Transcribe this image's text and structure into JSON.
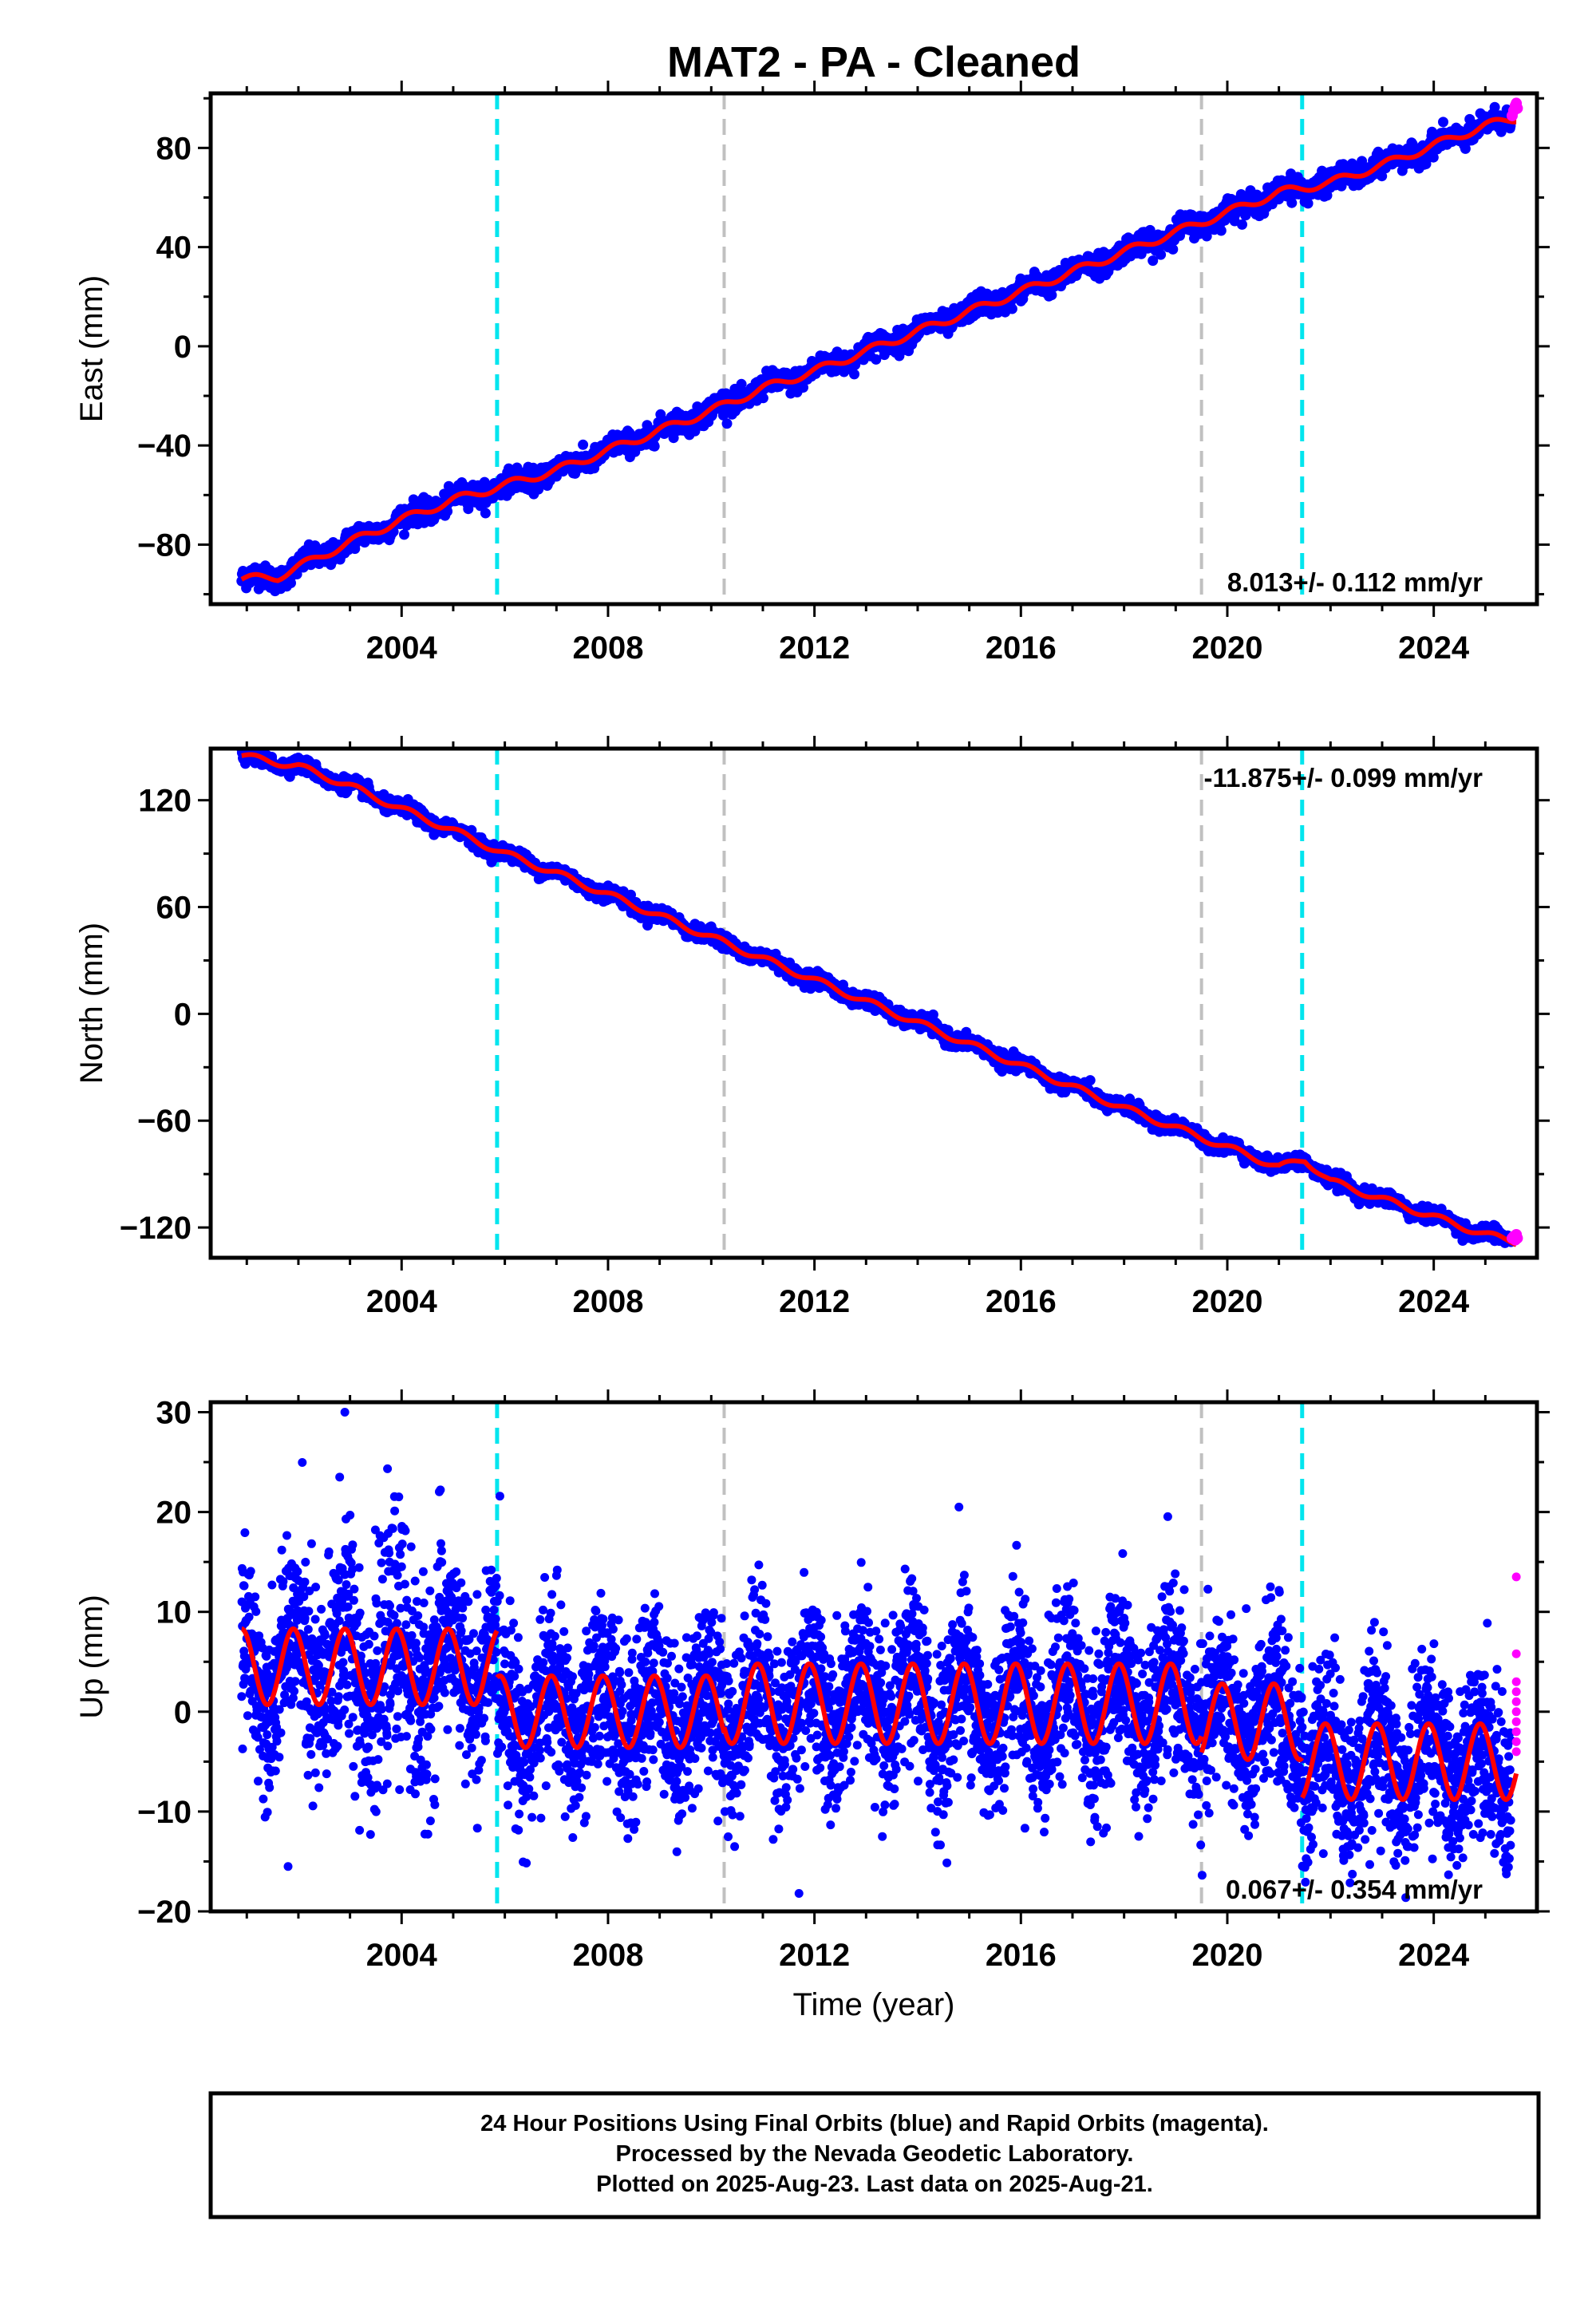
{
  "page": {
    "title": "MAT2  - PA - Cleaned",
    "footer_lines": [
      "24 Hour Positions Using Final Orbits (blue) and Rapid Orbits (magenta).",
      "Processed by the Nevada Geodetic Laboratory.",
      "Plotted on 2025-Aug-23. Last data on 2025-Aug-21."
    ]
  },
  "colors": {
    "final_orbits": "#0000ff",
    "rapid_orbits": "#ff00ff",
    "model_fit": "#ff0000",
    "equipment_change": "#00e5ee",
    "earthquake": "#c0c0c0"
  },
  "chart_data": [
    {
      "type": "scatter",
      "id": "east",
      "title": "MAT2  - PA - Cleaned",
      "xlabel": "",
      "ylabel": "East (mm)",
      "xlim": [
        2000.3,
        2026.0
      ],
      "ylim": [
        -104,
        102
      ],
      "xticks": [
        2004,
        2008,
        2012,
        2016,
        2020,
        2024
      ],
      "yticks": [
        -80,
        -40,
        0,
        40,
        80
      ],
      "rate_text": "8.013+/- 0.112 mm/yr",
      "rate_position": "bottom-right",
      "vertical_lines": [
        {
          "x": 2005.85,
          "kind": "equipment_change"
        },
        {
          "x": 2010.25,
          "kind": "earthquake"
        },
        {
          "x": 2019.5,
          "kind": "earthquake"
        },
        {
          "x": 2021.45,
          "kind": "equipment_change"
        }
      ],
      "trend_anchors": [
        [
          2000.9,
          -94
        ],
        [
          2001.6,
          -93
        ],
        [
          2002.2,
          -87
        ],
        [
          2003.0,
          -79
        ],
        [
          2004.0,
          -70
        ],
        [
          2005.0,
          -62
        ],
        [
          2006.0,
          -56
        ],
        [
          2007.0,
          -50
        ],
        [
          2008.0,
          -42
        ],
        [
          2009.0,
          -34
        ],
        [
          2010.0,
          -26
        ],
        [
          2011.0,
          -17
        ],
        [
          2012.0,
          -10
        ],
        [
          2013.0,
          -2
        ],
        [
          2014.0,
          6
        ],
        [
          2015.0,
          14
        ],
        [
          2016.0,
          22
        ],
        [
          2017.0,
          30
        ],
        [
          2018.0,
          38
        ],
        [
          2019.0,
          46
        ],
        [
          2020.0,
          54
        ],
        [
          2021.0,
          62
        ],
        [
          2022.0,
          66
        ],
        [
          2023.0,
          73
        ],
        [
          2024.0,
          81
        ],
        [
          2025.0,
          89
        ],
        [
          2025.6,
          92
        ]
      ],
      "seasonal_amplitude": 1.6,
      "scatter_sd": 2.2,
      "rapid_points": [
        [
          2025.52,
          93
        ],
        [
          2025.55,
          95
        ],
        [
          2025.58,
          97
        ],
        [
          2025.6,
          98
        ],
        [
          2025.62,
          96
        ]
      ]
    },
    {
      "type": "scatter",
      "id": "north",
      "title": "",
      "xlabel": "",
      "ylabel": "North (mm)",
      "xlim": [
        2000.3,
        2026.0
      ],
      "ylim": [
        -137,
        149
      ],
      "xticks": [
        2004,
        2008,
        2012,
        2016,
        2020,
        2024
      ],
      "yticks": [
        -120,
        -60,
        0,
        60,
        120
      ],
      "rate_text": "-11.875+/- 0.099 mm/yr",
      "rate_position": "top-right",
      "vertical_lines": [
        {
          "x": 2005.85,
          "kind": "equipment_change"
        },
        {
          "x": 2010.25,
          "kind": "earthquake"
        },
        {
          "x": 2019.5,
          "kind": "earthquake"
        },
        {
          "x": 2021.45,
          "kind": "equipment_change"
        }
      ],
      "trend_anchors": [
        [
          2000.9,
          145
        ],
        [
          2002.0,
          139
        ],
        [
          2003.0,
          128
        ],
        [
          2004.0,
          115
        ],
        [
          2005.0,
          103
        ],
        [
          2006.0,
          90
        ],
        [
          2007.0,
          79
        ],
        [
          2008.0,
          67
        ],
        [
          2009.0,
          55
        ],
        [
          2010.0,
          43
        ],
        [
          2011.0,
          31
        ],
        [
          2012.0,
          19
        ],
        [
          2013.0,
          7
        ],
        [
          2014.0,
          -5
        ],
        [
          2015.0,
          -17
        ],
        [
          2016.0,
          -29
        ],
        [
          2017.0,
          -41
        ],
        [
          2018.0,
          -53
        ],
        [
          2019.0,
          -64
        ],
        [
          2019.55,
          -70
        ],
        [
          2020.0,
          -75
        ],
        [
          2021.0,
          -86
        ],
        [
          2021.5,
          -82
        ],
        [
          2022.0,
          -94
        ],
        [
          2023.0,
          -104
        ],
        [
          2024.0,
          -114
        ],
        [
          2025.0,
          -124
        ],
        [
          2025.6,
          -128
        ]
      ],
      "seasonal_amplitude": 1.8,
      "scatter_sd": 2.0,
      "rapid_points": [
        [
          2025.52,
          -126
        ],
        [
          2025.55,
          -125
        ],
        [
          2025.58,
          -127
        ],
        [
          2025.6,
          -124
        ],
        [
          2025.62,
          -126
        ]
      ]
    },
    {
      "type": "scatter",
      "id": "up",
      "title": "",
      "xlabel": "Time (year)",
      "ylabel": "Up (mm)",
      "xlim": [
        2000.3,
        2026.0
      ],
      "ylim": [
        -20,
        31
      ],
      "xticks": [
        2004,
        2008,
        2012,
        2016,
        2020,
        2024
      ],
      "yticks": [
        -20,
        -10,
        0,
        10,
        20,
        30
      ],
      "rate_text": "0.067+/- 0.354 mm/yr",
      "rate_position": "bottom-right",
      "vertical_lines": [
        {
          "x": 2005.85,
          "kind": "equipment_change"
        },
        {
          "x": 2010.25,
          "kind": "earthquake"
        },
        {
          "x": 2019.5,
          "kind": "earthquake"
        },
        {
          "x": 2021.45,
          "kind": "equipment_change"
        }
      ],
      "fit_segments": [
        {
          "start": 2000.9,
          "end": 2005.85,
          "offset": 4.5,
          "amplitude": 3.8
        },
        {
          "start": 2005.85,
          "end": 2010.25,
          "offset": 0.0,
          "amplitude": 3.6
        },
        {
          "start": 2010.25,
          "end": 2019.5,
          "offset": 0.8,
          "amplitude": 4.0
        },
        {
          "start": 2019.5,
          "end": 2021.45,
          "offset": -1.0,
          "amplitude": 3.8
        },
        {
          "start": 2021.45,
          "end": 2025.6,
          "offset": -5.0,
          "amplitude": 3.8
        }
      ],
      "scatter_sd": 4.2,
      "outliers": [
        [
          2002.9,
          30
        ],
        [
          2002.8,
          23.5
        ],
        [
          2014.8,
          20.5
        ],
        [
          2001.8,
          -15.5
        ],
        [
          2011.7,
          -18.2
        ]
      ],
      "rapid_points": [
        [
          2025.6,
          13.5
        ],
        [
          2025.6,
          5.8
        ],
        [
          2025.6,
          3.0
        ],
        [
          2025.6,
          2.0
        ],
        [
          2025.6,
          1.0
        ],
        [
          2025.6,
          0.0
        ],
        [
          2025.6,
          -1.0
        ],
        [
          2025.6,
          -2.0
        ],
        [
          2025.6,
          -3.0
        ],
        [
          2025.6,
          -4.0
        ]
      ]
    }
  ]
}
